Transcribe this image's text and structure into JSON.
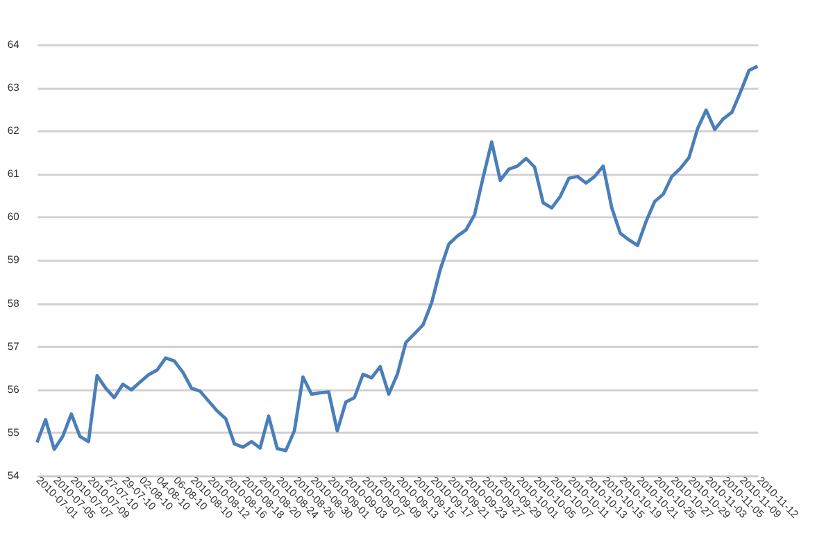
{
  "chart_data": {
    "type": "line",
    "categories": [
      "2010-07-01",
      null,
      "2010-07-05",
      null,
      "2010-07-07",
      null,
      "2010-07-09",
      null,
      "27-07-10",
      null,
      "29-07-10",
      null,
      "02-08-10",
      null,
      "04-08-10",
      null,
      "06-08-10",
      null,
      "2010-08-10",
      null,
      "2010-08-12",
      null,
      "2010-08-16",
      null,
      "2010-08-18",
      null,
      "2010-08-20",
      null,
      "2010-08-24",
      null,
      "2010-08-26",
      null,
      "2010-08-30",
      null,
      "2010-09-01",
      null,
      "2010-09-03",
      null,
      "2010-09-07",
      null,
      "2010-09-09",
      null,
      "2010-09-13",
      null,
      "2010-09-15",
      null,
      "2010-09-17",
      null,
      "2010-09-21",
      null,
      "2010-09-23",
      null,
      "2010-09-27",
      null,
      "2010-09-29",
      null,
      "2010-10-01",
      null,
      "2010-10-05",
      null,
      "2010-10-07",
      null,
      "2010-10-11",
      null,
      "2010-10-13",
      null,
      "2010-10-15",
      null,
      "2010-10-19",
      null,
      "2010-10-21",
      null,
      "2010-10-25",
      null,
      "2010-10-27",
      null,
      "2010-10-29",
      null,
      "2010-11-03",
      null,
      "2010-11-05",
      null,
      "2010-11-09",
      null,
      "2010-11-12"
    ],
    "series": [
      {
        "color": "#4a7ebb",
        "values": [
          54.77,
          55.3,
          54.61,
          54.91,
          55.43,
          54.91,
          54.79,
          56.32,
          56.03,
          55.81,
          56.12,
          55.99,
          56.17,
          56.34,
          56.45,
          56.73,
          56.66,
          56.4,
          56.03,
          55.96,
          55.73,
          55.5,
          55.32,
          54.74,
          54.66,
          54.79,
          54.64,
          55.38,
          54.63,
          54.58,
          55.04,
          56.29,
          55.89,
          55.92,
          55.94,
          55.04,
          55.71,
          55.81,
          56.35,
          56.27,
          56.53,
          55.89,
          56.35,
          57.09,
          57.29,
          57.5,
          58.01,
          58.78,
          59.37,
          59.56,
          59.7,
          60.05,
          60.92,
          61.74,
          60.85,
          61.11,
          61.18,
          61.36,
          61.16,
          60.33,
          60.21,
          60.48,
          60.9,
          60.94,
          60.79,
          60.94,
          61.18,
          60.21,
          59.62,
          59.47,
          59.34,
          59.9,
          60.36,
          60.53,
          60.94,
          61.13,
          61.38,
          62.05,
          62.48,
          62.03,
          62.28,
          62.43,
          62.9,
          63.4,
          63.5
        ]
      }
    ],
    "ylim": [
      54,
      64
    ],
    "yticks": [
      54,
      55,
      56,
      57,
      58,
      59,
      60,
      61,
      62,
      63,
      64
    ],
    "grid": "y",
    "marker": "none",
    "line_style": "solid"
  }
}
